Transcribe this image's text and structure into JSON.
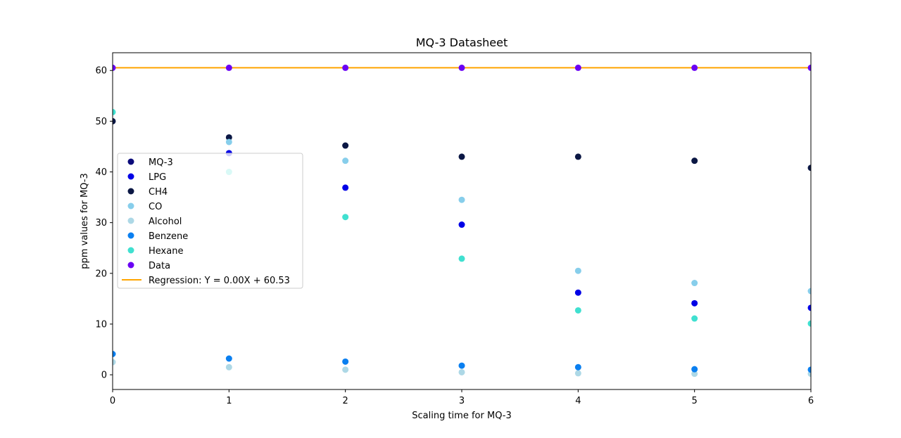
{
  "chart_data": {
    "type": "scatter",
    "title": "MQ-3 Datasheet",
    "xlabel": "Scaling time for MQ-3",
    "ylabel": "ppm values for MQ-3",
    "xlim": [
      0,
      6
    ],
    "ylim": [
      -2.9,
      63.5
    ],
    "xticks": [
      0,
      1,
      2,
      3,
      4,
      5,
      6
    ],
    "yticks": [
      0,
      10,
      20,
      30,
      40,
      50,
      60
    ],
    "grid": false,
    "legend_position": "center-left",
    "series": [
      {
        "name": "MQ-3",
        "color": "#0b0b7a",
        "points": []
      },
      {
        "name": "LPG",
        "color": "#0000e6",
        "points": [
          [
            1,
            43.7
          ],
          [
            2,
            36.9
          ],
          [
            3,
            29.6
          ],
          [
            4,
            16.2
          ],
          [
            5,
            14.1
          ],
          [
            6,
            13.2
          ]
        ]
      },
      {
        "name": "CH4",
        "color": "#0b1744",
        "points": [
          [
            0,
            50.0
          ],
          [
            1,
            46.8
          ],
          [
            2,
            45.2
          ],
          [
            3,
            43.0
          ],
          [
            4,
            43.0
          ],
          [
            5,
            42.2
          ],
          [
            6,
            40.8
          ]
        ]
      },
      {
        "name": "CO",
        "color": "#87ceeb",
        "points": [
          [
            1,
            45.9
          ],
          [
            2,
            42.2
          ],
          [
            3,
            34.5
          ],
          [
            4,
            20.5
          ],
          [
            5,
            18.1
          ],
          [
            6,
            16.5
          ]
        ]
      },
      {
        "name": "Alcohol",
        "color": "#add8e6",
        "points": [
          [
            0,
            2.5
          ],
          [
            1,
            1.5
          ],
          [
            2,
            1.0
          ],
          [
            3,
            0.5
          ],
          [
            4,
            0.3
          ],
          [
            5,
            0.2
          ],
          [
            6,
            0.2
          ]
        ]
      },
      {
        "name": "Benzene",
        "color": "#0a7ff0",
        "points": [
          [
            0,
            4.1
          ],
          [
            1,
            3.2
          ],
          [
            2,
            2.6
          ],
          [
            3,
            1.8
          ],
          [
            4,
            1.5
          ],
          [
            5,
            1.1
          ],
          [
            6,
            1.0
          ]
        ]
      },
      {
        "name": "Hexane",
        "color": "#40e0d0",
        "points": [
          [
            0,
            51.8
          ],
          [
            1,
            40.0
          ],
          [
            2,
            31.1
          ],
          [
            3,
            22.9
          ],
          [
            4,
            12.7
          ],
          [
            5,
            11.1
          ],
          [
            6,
            10.1
          ]
        ]
      },
      {
        "name": "Data",
        "color": "#6a00f4",
        "points": [
          [
            0,
            60.53
          ],
          [
            1,
            60.53
          ],
          [
            2,
            60.53
          ],
          [
            3,
            60.53
          ],
          [
            4,
            60.53
          ],
          [
            5,
            60.53
          ],
          [
            6,
            60.53
          ]
        ]
      }
    ],
    "regression": {
      "name": "Regression: Y = 0.00X + 60.53",
      "color": "#ffa500",
      "slope": 0.0,
      "intercept": 60.53
    }
  }
}
